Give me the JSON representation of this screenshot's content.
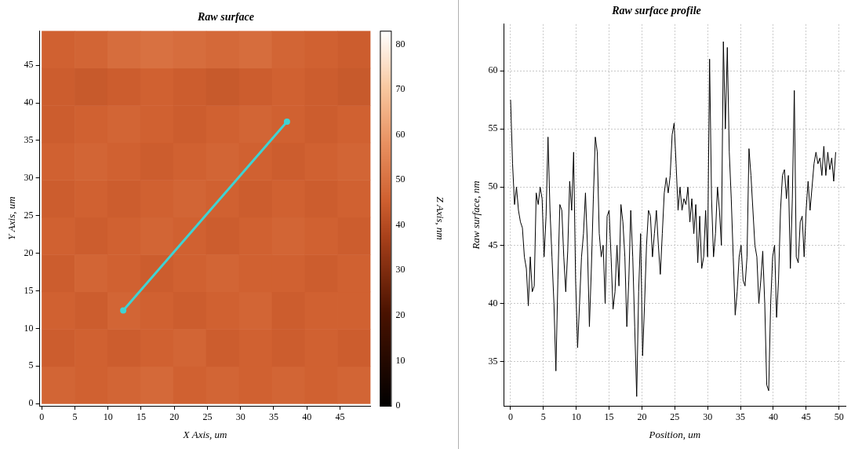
{
  "chart_data": [
    {
      "type": "heatmap",
      "title": "Raw surface",
      "x_label": "X Axis, um",
      "y_label": "Y Axis, um",
      "xlim": [
        -0.3,
        49.6
      ],
      "xticks": [
        0,
        5,
        10,
        15,
        20,
        25,
        30,
        35,
        40,
        45
      ],
      "ylim": [
        -0.3,
        49.6
      ],
      "yticks": [
        0,
        5,
        10,
        15,
        20,
        25,
        30,
        35,
        40,
        45
      ],
      "grid": false,
      "x_bins": [
        0,
        4.96,
        9.92,
        14.88,
        19.84,
        24.8,
        29.76,
        34.72,
        39.68,
        44.64,
        49.6
      ],
      "y_bins": [
        0,
        4.96,
        9.92,
        14.88,
        19.84,
        24.8,
        29.76,
        34.72,
        39.68,
        44.64,
        49.6
      ],
      "cells": [
        [
          47,
          46,
          47,
          48,
          46,
          47,
          46,
          47,
          46,
          47
        ],
        [
          45,
          46,
          45,
          46,
          47,
          45,
          46,
          45,
          46,
          45
        ],
        [
          46,
          45,
          47,
          46,
          45,
          46,
          47,
          45,
          46,
          46
        ],
        [
          45,
          47,
          46,
          45,
          46,
          47,
          46,
          46,
          45,
          46
        ],
        [
          46,
          45,
          46,
          47,
          46,
          45,
          46,
          47,
          46,
          45
        ],
        [
          45,
          46,
          45,
          46,
          47,
          46,
          45,
          46,
          45,
          46
        ],
        [
          46,
          47,
          46,
          45,
          46,
          47,
          46,
          45,
          46,
          47
        ],
        [
          45,
          46,
          47,
          46,
          45,
          46,
          47,
          46,
          45,
          46
        ],
        [
          45,
          44,
          45,
          46,
          45,
          44,
          45,
          46,
          45,
          44
        ],
        [
          46,
          47,
          49,
          50,
          49,
          48,
          49,
          47,
          46,
          45
        ]
      ],
      "colorbar": {
        "label": "Z Axis, nm",
        "range": [
          0,
          83
        ],
        "ticks": [
          0,
          10,
          20,
          30,
          40,
          50,
          60,
          70,
          80
        ]
      },
      "profile_line": {
        "x": [
          12.3,
          37
        ],
        "y": [
          12.4,
          37.5
        ],
        "color": "#3fd3d3"
      }
    },
    {
      "type": "line",
      "title": "Raw surface profile",
      "x_label": "Position, um",
      "y_label": "Raw surface, nm",
      "color": "#000000",
      "grid": true,
      "xlim": [
        -1,
        51
      ],
      "xticks": [
        0,
        5,
        10,
        15,
        20,
        25,
        30,
        35,
        40,
        45,
        50
      ],
      "ylim": [
        31.2,
        64
      ],
      "yticks": [
        35,
        40,
        45,
        50,
        55,
        60
      ],
      "x": [
        0,
        0.3,
        0.6,
        0.9,
        1.2,
        1.5,
        1.8,
        2.1,
        2.4,
        2.7,
        3,
        3.3,
        3.6,
        3.9,
        4.2,
        4.5,
        4.8,
        5.1,
        5.4,
        5.7,
        6,
        6.3,
        6.6,
        6.9,
        7.2,
        7.5,
        7.8,
        8.1,
        8.4,
        8.7,
        9,
        9.3,
        9.6,
        9.9,
        10.2,
        10.5,
        10.8,
        11.1,
        11.4,
        11.7,
        12,
        12.3,
        12.6,
        12.9,
        13.2,
        13.5,
        13.8,
        14.1,
        14.4,
        14.7,
        15,
        15.3,
        15.6,
        15.9,
        16.2,
        16.5,
        16.8,
        17.1,
        17.4,
        17.7,
        18,
        18.3,
        18.6,
        18.9,
        19.2,
        19.5,
        19.8,
        20.1,
        20.4,
        20.7,
        21,
        21.3,
        21.6,
        21.9,
        22.2,
        22.5,
        22.8,
        23.1,
        23.4,
        23.7,
        24,
        24.3,
        24.6,
        24.9,
        25.2,
        25.5,
        25.8,
        26.1,
        26.4,
        26.7,
        27,
        27.3,
        27.6,
        27.9,
        28.2,
        28.5,
        28.8,
        29.1,
        29.4,
        29.7,
        30,
        30.3,
        30.6,
        30.9,
        31.2,
        31.5,
        31.8,
        32.1,
        32.4,
        32.7,
        33,
        33.3,
        33.6,
        33.9,
        34.2,
        34.5,
        34.8,
        35.1,
        35.4,
        35.7,
        36,
        36.3,
        36.6,
        36.9,
        37.2,
        37.5,
        37.8,
        38.1,
        38.4,
        38.7,
        39,
        39.3,
        39.6,
        39.9,
        40.2,
        40.5,
        40.8,
        41.1,
        41.4,
        41.7,
        42,
        42.3,
        42.6,
        42.9,
        43.2,
        43.5,
        43.8,
        44.1,
        44.4,
        44.7,
        45,
        45.3,
        45.6,
        45.9,
        46.2,
        46.5,
        46.8,
        47.1,
        47.4,
        47.7,
        48,
        48.3,
        48.6,
        48.9,
        49.2,
        49.5
      ],
      "values": [
        57.5,
        52,
        48.5,
        50,
        48,
        47,
        46.5,
        44,
        43,
        39.8,
        44,
        41,
        41.5,
        49.5,
        48.5,
        50,
        49,
        44,
        47.5,
        54.3,
        48,
        44,
        40,
        34.2,
        42,
        48.5,
        48,
        44,
        41,
        44.5,
        50.5,
        48,
        53,
        42,
        36.2,
        40,
        44,
        46,
        49.5,
        45,
        38,
        43,
        49,
        54.3,
        53,
        46,
        44,
        45,
        40,
        47.5,
        48,
        44,
        39.5,
        41,
        45,
        41.5,
        48.5,
        47,
        44,
        38,
        42,
        48,
        44,
        38,
        32,
        41,
        46,
        35.5,
        40,
        45,
        48,
        47.5,
        44,
        46,
        48,
        45,
        42.5,
        46,
        49.5,
        50.8,
        49.5,
        51,
        54.5,
        55.5,
        52,
        48,
        50,
        48,
        49,
        48.5,
        50,
        47,
        49,
        46,
        48.5,
        43.5,
        47.5,
        43,
        44,
        48,
        44,
        61,
        49,
        44,
        46,
        50,
        48,
        45,
        62.5,
        55,
        62,
        53,
        49,
        44,
        39,
        41,
        44,
        45,
        42,
        41.5,
        44,
        53.3,
        51,
        48,
        45,
        44,
        40,
        42,
        44.5,
        40,
        33,
        32.5,
        40,
        44,
        45,
        38.8,
        42,
        48,
        51,
        51.5,
        49,
        51,
        43,
        49,
        58.3,
        44,
        43.5,
        47,
        47.5,
        44,
        48,
        50.5,
        48,
        50,
        52,
        53,
        52,
        52.5,
        51,
        53.5,
        51,
        53,
        51.5,
        52.5,
        50.5,
        53
      ]
    }
  ]
}
